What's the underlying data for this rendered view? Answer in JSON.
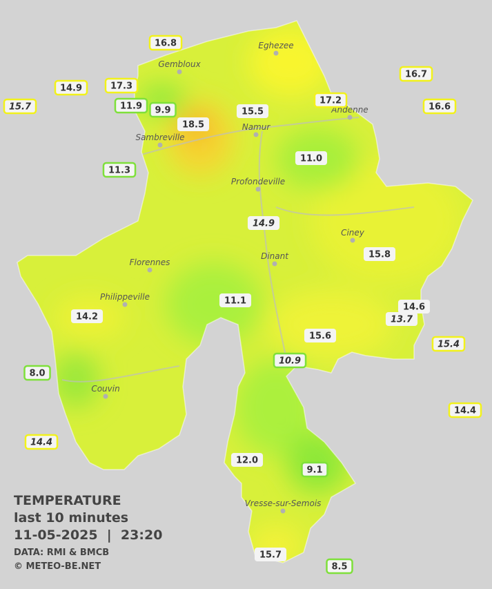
{
  "legend": {
    "title": "TEMPERATURE",
    "period": "last 10 minutes",
    "datetime": "11-05-2025  |  23:20",
    "source": "DATA: RMI & BMCB",
    "copyright": "© METEO-BE.NET"
  },
  "cities": [
    "Eghezee",
    "Gembloux",
    "Andenne",
    "Namur",
    "Sambreville",
    "Profondeville",
    "Ciney",
    "Dinant",
    "Florennes",
    "Philippeville",
    "Couvin",
    "Vresse-sur-Semois"
  ],
  "stations": [
    {
      "value": "16.8",
      "border": "#f2f21a",
      "italic": false
    },
    {
      "value": "14.9",
      "border": "#f2f21a",
      "italic": false
    },
    {
      "value": "17.3",
      "border": "#f2f21a",
      "italic": false
    },
    {
      "value": "15.7",
      "border": "#f2f21a",
      "italic": true
    },
    {
      "value": "11.9",
      "border": "#7ee03a",
      "italic": false
    },
    {
      "value": "9.9",
      "border": "#7ee03a",
      "italic": false
    },
    {
      "value": "18.5",
      "border": "none",
      "italic": false
    },
    {
      "value": "15.5",
      "border": "none",
      "italic": false
    },
    {
      "value": "17.2",
      "border": "#f2f21a",
      "italic": false
    },
    {
      "value": "16.7",
      "border": "#f2f21a",
      "italic": false
    },
    {
      "value": "16.6",
      "border": "#f2f21a",
      "italic": false
    },
    {
      "value": "11.0",
      "border": "none",
      "italic": false
    },
    {
      "value": "11.3",
      "border": "#7ee03a",
      "italic": false
    },
    {
      "value": "14.9",
      "border": "none",
      "italic": true
    },
    {
      "value": "15.8",
      "border": "none",
      "italic": false
    },
    {
      "value": "14.6",
      "border": "none",
      "italic": false
    },
    {
      "value": "13.7",
      "border": "none",
      "italic": true
    },
    {
      "value": "11.1",
      "border": "none",
      "italic": false
    },
    {
      "value": "14.2",
      "border": "none",
      "italic": false
    },
    {
      "value": "15.6",
      "border": "none",
      "italic": false
    },
    {
      "value": "15.4",
      "border": "#f2f21a",
      "italic": true
    },
    {
      "value": "10.9",
      "border": "#7ee03a",
      "italic": true
    },
    {
      "value": "8.0",
      "border": "#7ee03a",
      "italic": false
    },
    {
      "value": "14.4",
      "border": "#f2f21a",
      "italic": false
    },
    {
      "value": "14.4",
      "border": "#f2f21a",
      "italic": true
    },
    {
      "value": "12.0",
      "border": "none",
      "italic": false
    },
    {
      "value": "9.1",
      "border": "#7ee03a",
      "italic": false
    },
    {
      "value": "15.7",
      "border": "none",
      "italic": false
    },
    {
      "value": "8.5",
      "border": "#7ee03a",
      "italic": false
    }
  ]
}
